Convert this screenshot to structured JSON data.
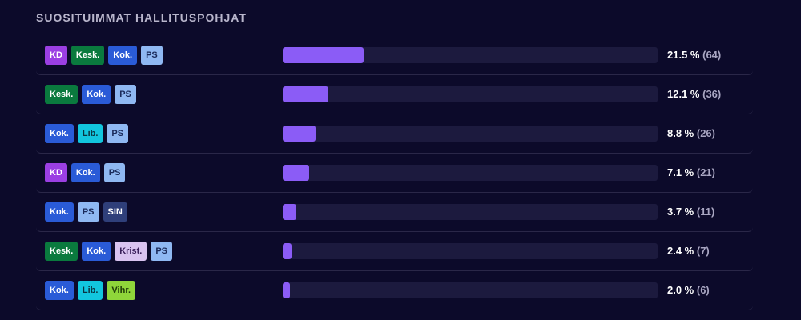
{
  "title": "SUOSITUIMMAT HALLITUSPOHJAT",
  "party_styles": {
    "KD": {
      "bg": "#9b3fe3",
      "fg": "#ffffff"
    },
    "Kesk.": {
      "bg": "#0a7a3e",
      "fg": "#ffffff"
    },
    "Kok.": {
      "bg": "#2a5bd7",
      "fg": "#ffffff"
    },
    "PS": {
      "bg": "#8fb8f2",
      "fg": "#1a2a5a"
    },
    "Lib.": {
      "bg": "#12c6de",
      "fg": "#0b3440"
    },
    "SIN": {
      "bg": "#2f3f7a",
      "fg": "#ffffff"
    },
    "Krist.": {
      "bg": "#d9c3f0",
      "fg": "#3a1f5a"
    },
    "Vihr.": {
      "bg": "#8fd63a",
      "fg": "#1e3a08"
    }
  },
  "chart_data": {
    "type": "bar",
    "title": "SUOSITUIMMAT HALLITUSPOHJAT",
    "categories": [
      [
        "KD",
        "Kesk.",
        "Kok.",
        "PS"
      ],
      [
        "Kesk.",
        "Kok.",
        "PS"
      ],
      [
        "Kok.",
        "Lib.",
        "PS"
      ],
      [
        "KD",
        "Kok.",
        "PS"
      ],
      [
        "Kok.",
        "PS",
        "SIN"
      ],
      [
        "Kesk.",
        "Kok.",
        "Krist.",
        "PS"
      ],
      [
        "Kok.",
        "Lib.",
        "Vihr."
      ]
    ],
    "series": [
      {
        "values": [
          21.5,
          12.1,
          8.8,
          7.1,
          3.7,
          2.4,
          2.0
        ]
      }
    ],
    "percent_labels": [
      "21.5 %",
      "12.1 %",
      "8.8 %",
      "7.1 %",
      "3.7 %",
      "2.4 %",
      "2.0 %"
    ],
    "count_labels": [
      "(64)",
      "(36)",
      "(26)",
      "(21)",
      "(11)",
      "(7)",
      "(6)"
    ],
    "xlim": [
      0,
      100
    ],
    "bar_color": "#8b5cf6",
    "track_color": "#1c1a3e"
  }
}
